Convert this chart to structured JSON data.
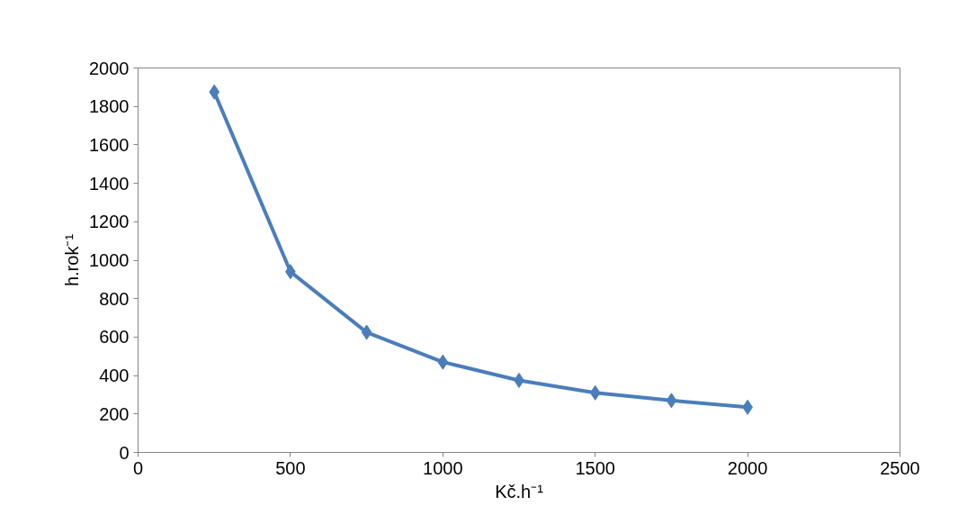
{
  "chart_data": {
    "type": "line",
    "xlabel": "Kč.h⁻¹",
    "ylabel": "h.rok⁻¹",
    "x": [
      250,
      500,
      750,
      1000,
      1250,
      1500,
      1750,
      2000
    ],
    "series": [
      {
        "color": "#4a7ebb",
        "values": [
          1875,
          940,
          625,
          470,
          375,
          310,
          270,
          235
        ]
      }
    ],
    "xlim": [
      0,
      2500
    ],
    "xticks": [
      0,
      500,
      1000,
      1500,
      2000,
      2500
    ],
    "ylim": [
      0,
      2000
    ],
    "yticks": [
      0,
      200,
      400,
      600,
      800,
      1000,
      1200,
      1400,
      1600,
      1800,
      2000
    ],
    "grid": false,
    "marker": "diamond",
    "line_style": "solid"
  }
}
